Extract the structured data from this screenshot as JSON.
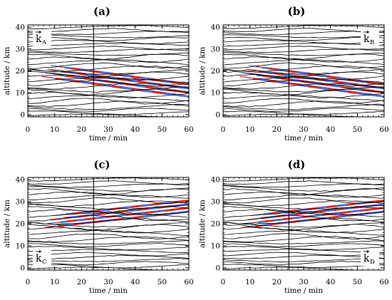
{
  "colors": {
    "red": "#dd2a14",
    "blue": "#4a6fe3",
    "line": "#000000"
  },
  "chart_data": [
    {
      "type": "line",
      "panel": "(a)",
      "k_label": "k",
      "k_sub": "A",
      "k_position": "top-left",
      "xlabel": "time / min",
      "ylabel": "altitude / km",
      "xlim": [
        0,
        60
      ],
      "ylim": [
        -1,
        41
      ],
      "xticks": [
        "0",
        "10",
        "20",
        "30",
        "40",
        "50",
        "60"
      ],
      "yticks": [
        "0",
        "10",
        "20",
        "30",
        "40"
      ],
      "vline_x": 24.5,
      "wave_packet": {
        "t_start": 7,
        "alt_start": 20,
        "t_end": 60,
        "alt_end": 11,
        "width": 5.5,
        "direction": "down",
        "stripes": 14
      }
    },
    {
      "type": "line",
      "panel": "(b)",
      "k_label": "k",
      "k_sub": "B",
      "k_position": "top-right",
      "xlabel": "time / min",
      "ylabel": "altitude / km",
      "xlim": [
        0,
        60
      ],
      "ylim": [
        -1,
        41
      ],
      "xticks": [
        "0",
        "10",
        "20",
        "30",
        "40",
        "50",
        "60"
      ],
      "yticks": [
        "0",
        "10",
        "20",
        "30",
        "40"
      ],
      "vline_x": 24.5,
      "wave_packet": {
        "t_start": 8,
        "alt_start": 20,
        "t_end": 60,
        "alt_end": 11,
        "width": 5.5,
        "direction": "down",
        "stripes": 14
      }
    },
    {
      "type": "line",
      "panel": "(c)",
      "k_label": "k",
      "k_sub": "C",
      "k_position": "bottom-left",
      "xlabel": "time / min",
      "ylabel": "altitude / km",
      "xlim": [
        0,
        60
      ],
      "ylim": [
        -1,
        41
      ],
      "xticks": [
        "0",
        "10",
        "20",
        "30",
        "40",
        "50",
        "60"
      ],
      "yticks": [
        "0",
        "10",
        "20",
        "30",
        "40"
      ],
      "vline_x": 24.5,
      "wave_packet": {
        "t_start": 8,
        "alt_start": 21,
        "t_end": 60,
        "alt_end": 28,
        "width": 5,
        "direction": "up",
        "stripes": 14
      }
    },
    {
      "type": "line",
      "panel": "(d)",
      "k_label": "k",
      "k_sub": "D",
      "k_position": "bottom-right",
      "xlabel": "time / min",
      "ylabel": "altitude / km",
      "xlim": [
        0,
        60
      ],
      "ylim": [
        -1,
        41
      ],
      "xticks": [
        "0",
        "10",
        "20",
        "30",
        "40",
        "50",
        "60"
      ],
      "yticks": [
        "0",
        "10",
        "20",
        "30",
        "40"
      ],
      "vline_x": 24.5,
      "wave_packet": {
        "t_start": 9,
        "alt_start": 21,
        "t_end": 60,
        "alt_end": 28,
        "width": 5,
        "direction": "up",
        "stripes": 14
      }
    }
  ]
}
